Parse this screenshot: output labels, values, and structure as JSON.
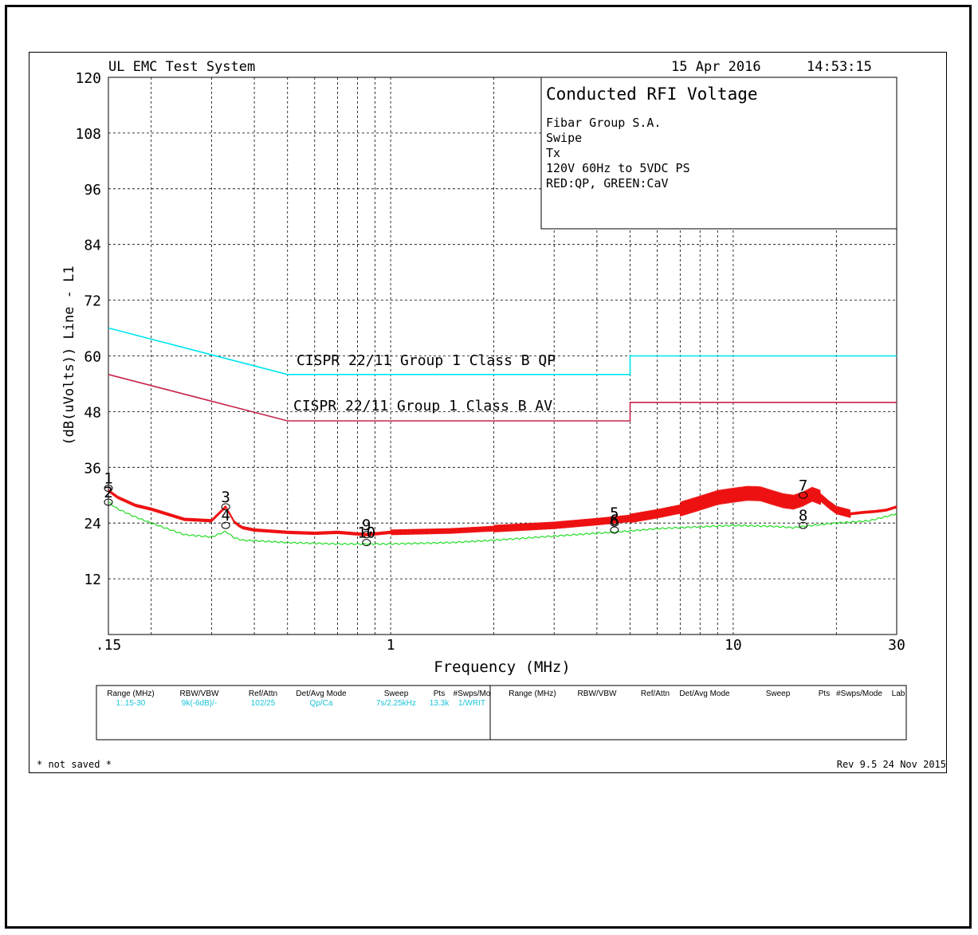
{
  "header": {
    "system_name": "UL EMC Test System",
    "date": "15 Apr 2016",
    "time": "14:53:15"
  },
  "info_box": {
    "title": "Conducted RFI Voltage",
    "lines": [
      "Fibar Group S.A.",
      "Swipe",
      "Tx",
      "120V 60Hz to 5VDC PS",
      "RED:QP, GREEN:CaV"
    ]
  },
  "footer": {
    "left": "* not saved *",
    "right": "Rev 9.5 24 Nov 2015"
  },
  "settings_table": {
    "headers_left": [
      "Range (MHz)",
      "RBW/VBW",
      "Ref/Attn",
      "Det/Avg Mode",
      "Sweep",
      "Pts",
      "#Swps/Mo"
    ],
    "values_left": [
      "1:.15-30",
      "9k(-6dB)/-",
      "102/25",
      "Qp/Ca",
      "7s/2.25kHz",
      "13.3k",
      "1/WRIT"
    ],
    "headers_right": [
      "Range (MHz)",
      "RBW/VBW",
      "Ref/Attn",
      "Det/Avg Mode",
      "Sweep",
      "Pts",
      "#Swps/Mode",
      "Lab"
    ]
  },
  "colors": {
    "qp_trace": "#ee1111",
    "cav_trace": "#22dd22",
    "qp_limit": "#00e5ee",
    "av_limit": "#c8254a",
    "grid": "#000000"
  },
  "chart_data": {
    "type": "line",
    "title": "Conducted RFI Voltage",
    "xlabel": "Frequency (MHz)",
    "ylabel": "(dB(uVolts)) Line - L1",
    "x_scale": "log",
    "xlim": [
      0.15,
      30
    ],
    "ylim": [
      0,
      120
    ],
    "x_tick_labels": [
      {
        "value": 0.15,
        "label": ".15"
      },
      {
        "value": 1,
        "label": "1"
      },
      {
        "value": 10,
        "label": "10"
      },
      {
        "value": 30,
        "label": "30"
      }
    ],
    "y_ticks": [
      12,
      24,
      36,
      48,
      60,
      72,
      84,
      96,
      108,
      120
    ],
    "grid": true,
    "series": [
      {
        "name": "RED:QP",
        "color_key": "qp_trace",
        "x": [
          0.15,
          0.16,
          0.18,
          0.2,
          0.25,
          0.3,
          0.33,
          0.35,
          0.36,
          0.37,
          0.4,
          0.5,
          0.6,
          0.7,
          0.85,
          1.0,
          1.5,
          2,
          3,
          4,
          5,
          6,
          7,
          8,
          9,
          10,
          11,
          12,
          13,
          14,
          15,
          16,
          17,
          18,
          19,
          20,
          22,
          24,
          26,
          28,
          30
        ],
        "y": [
          31,
          29.5,
          27.8,
          27,
          24.8,
          24.5,
          27.5,
          24.2,
          23.5,
          23,
          22.5,
          22,
          21.8,
          22,
          21.5,
          22,
          22.3,
          22.8,
          23.5,
          24.3,
          25,
          26,
          27,
          28.3,
          29.5,
          30,
          30.4,
          30.3,
          29.5,
          28.8,
          28.5,
          29.2,
          30.2,
          29.5,
          28,
          26.8,
          26,
          26.3,
          26.5,
          26.8,
          27.5
        ]
      },
      {
        "name": "GREEN:CaV",
        "color_key": "cav_trace",
        "x": [
          0.15,
          0.16,
          0.18,
          0.2,
          0.25,
          0.3,
          0.33,
          0.35,
          0.37,
          0.4,
          0.5,
          0.7,
          1.0,
          1.5,
          2,
          3,
          4,
          5,
          6,
          8,
          10,
          13,
          15,
          17,
          20,
          25,
          30
        ],
        "y": [
          28.5,
          27,
          25.3,
          24,
          21.5,
          21,
          22.2,
          20.8,
          20.3,
          20.2,
          19.8,
          19.5,
          19.5,
          19.8,
          20.3,
          21.2,
          21.8,
          22.3,
          22.8,
          23.2,
          23.5,
          23.3,
          23,
          23.5,
          24,
          24.5,
          26
        ]
      },
      {
        "name": "CISPR 22/11 Group 1 Class B QP",
        "color_key": "qp_limit",
        "x": [
          0.15,
          0.5,
          0.5,
          5,
          5,
          30
        ],
        "y": [
          66,
          56,
          56,
          56,
          60,
          60
        ]
      },
      {
        "name": "CISPR 22/11 Group 1 Class B AV",
        "color_key": "av_limit",
        "x": [
          0.15,
          0.5,
          0.5,
          5,
          5,
          30
        ],
        "y": [
          56,
          46,
          46,
          46,
          50,
          50
        ]
      }
    ],
    "limit_labels": [
      {
        "text": "CISPR 22/11 Group 1 Class B QP",
        "color_key": "qp_limit"
      },
      {
        "text": "CISPR 22/11 Group 1 Class B AV",
        "color_key": "av_limit"
      }
    ],
    "markers": [
      {
        "label": "1",
        "x": 0.15,
        "y": 31.5
      },
      {
        "label": "2",
        "x": 0.15,
        "y": 28.5
      },
      {
        "label": "3",
        "x": 0.33,
        "y": 27.5
      },
      {
        "label": "4",
        "x": 0.33,
        "y": 23.5
      },
      {
        "label": "9",
        "x": 0.85,
        "y": 21.5
      },
      {
        "label": "10",
        "x": 0.85,
        "y": 19.8
      },
      {
        "label": "5",
        "x": 4.5,
        "y": 24
      },
      {
        "label": "6",
        "x": 4.5,
        "y": 22.5
      },
      {
        "label": "7",
        "x": 16,
        "y": 30
      },
      {
        "label": "8",
        "x": 16,
        "y": 23.5
      }
    ]
  }
}
